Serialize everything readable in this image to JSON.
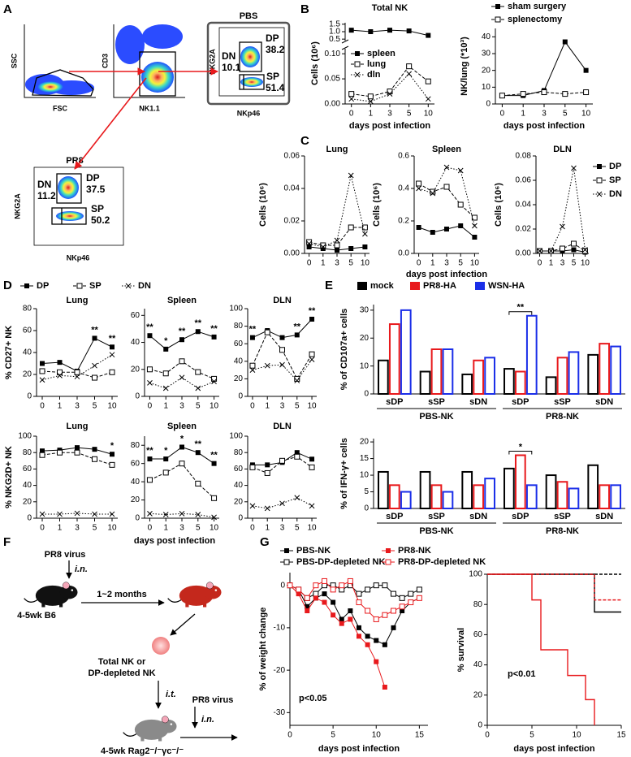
{
  "panels": [
    "A",
    "B",
    "C",
    "D",
    "E",
    "F",
    "G"
  ],
  "flow": {
    "plots": [
      {
        "x_label": "FSC",
        "y_label": "SSC"
      },
      {
        "x_label": "NK1.1",
        "y_label": "CD3"
      },
      {
        "title": "PBS",
        "x_label": "NKp46",
        "y_label": "NKG2A",
        "gates": [
          {
            "name": "DN",
            "value": 10.1
          },
          {
            "name": "DP",
            "value": 38.2
          },
          {
            "name": "SP",
            "value": 51.4
          }
        ]
      },
      {
        "title": "PR8",
        "x_label": "NKp46",
        "y_label": "NKG2A",
        "gates": [
          {
            "name": "DN",
            "value": 11.2
          },
          {
            "name": "DP",
            "value": 37.5
          },
          {
            "name": "SP",
            "value": 50.2
          }
        ]
      }
    ]
  },
  "diagram": {
    "virus1": "PR8 virus",
    "route1": "i.n.",
    "interval": "1~2 months",
    "donor": "4-5wk B6",
    "cells": [
      "Total NK or",
      "DP-depleted NK"
    ],
    "route2": "i.t.",
    "virus2": "PR8 virus",
    "route3": "i.n.",
    "recipient": "4-5wk Rag2⁻/⁻γc⁻/⁻"
  },
  "chart_data": [
    {
      "type": "line",
      "title": "Total NK",
      "y_label": "Cells (10⁶)",
      "x_label": "days post infection",
      "categories": [
        "0",
        "1",
        "3",
        "5",
        "10"
      ],
      "ylim": [
        0,
        0.11
      ],
      "yticks": [
        {
          "value": 0,
          "label": "0.00"
        },
        0.05,
        {
          "value": 0.1,
          "label": "0.10"
        }
      ],
      "y2lim": [
        0.4,
        1.6
      ],
      "y2ticks": [
        0.5,
        {
          "value": 1,
          "label": "1.0"
        },
        1.5
      ],
      "series": [
        {
          "name": "spleen",
          "color": "#000000",
          "marker": "square",
          "dash": "solid",
          "axis": "y2",
          "values": [
            1.1,
            1.0,
            1.1,
            1.05,
            0.75
          ]
        },
        {
          "name": "lung",
          "color": "#000000",
          "marker": "open",
          "dash": "dashed",
          "values": [
            0.02,
            0.015,
            0.025,
            0.075,
            0.045
          ]
        },
        {
          "name": "dln",
          "color": "#000000",
          "marker": "x",
          "dash": "dotted",
          "values": [
            0.01,
            0.005,
            0.02,
            0.06,
            0.01
          ]
        }
      ]
    },
    {
      "type": "line",
      "y_label": "NK/lung (*10³)",
      "x_label": "days post infection",
      "categories": [
        "0",
        "1",
        "3",
        "5",
        "10"
      ],
      "ylim": [
        0,
        45
      ],
      "yticks": [
        0,
        10,
        20,
        30,
        40
      ],
      "series": [
        {
          "name": "sham surgery",
          "color": "#000000",
          "marker": "square",
          "dash": "solid",
          "values": [
            5,
            5,
            8,
            37,
            20
          ]
        },
        {
          "name": "splenectomy",
          "color": "#000000",
          "marker": "open",
          "dash": "dashed",
          "values": [
            5,
            6,
            7,
            6,
            7
          ]
        }
      ]
    },
    {
      "type": "line",
      "title": "Lung",
      "y_label": "Cells (10⁶)",
      "categories": [
        "0",
        "1",
        "3",
        "5",
        "10"
      ],
      "ylim": [
        0,
        0.06
      ],
      "yticks": [
        {
          "value": 0,
          "label": "0.00"
        },
        0.02,
        0.04,
        0.06
      ],
      "series": [
        {
          "name": "DP",
          "color": "#000000",
          "marker": "square",
          "dash": "solid",
          "values": [
            0.004,
            0.003,
            0.002,
            0.003,
            0.004
          ]
        },
        {
          "name": "SP",
          "color": "#000000",
          "marker": "open",
          "dash": "dashed",
          "values": [
            0.007,
            0.005,
            0.005,
            0.016,
            0.016
          ]
        },
        {
          "name": "DN",
          "color": "#000000",
          "marker": "x",
          "dash": "dotted",
          "values": [
            0.006,
            0.004,
            0.008,
            0.048,
            0.012
          ]
        }
      ]
    },
    {
      "type": "line",
      "title": "Spleen",
      "y_label": "Cells (10⁶)",
      "x_label": "days post infection",
      "categories": [
        "0",
        "1",
        "3",
        "5",
        "10"
      ],
      "ylim": [
        0,
        0.6
      ],
      "yticks": [
        {
          "value": 0,
          "label": "0.0"
        },
        0.2,
        0.4,
        0.6
      ],
      "series": [
        {
          "color": "#000000",
          "marker": "square",
          "dash": "solid",
          "values": [
            0.16,
            0.13,
            0.15,
            0.17,
            0.1
          ]
        },
        {
          "color": "#000000",
          "marker": "open",
          "dash": "dashed",
          "values": [
            0.43,
            0.38,
            0.41,
            0.3,
            0.22
          ]
        },
        {
          "color": "#000000",
          "marker": "x",
          "dash": "dotted",
          "values": [
            0.4,
            0.37,
            0.53,
            0.51,
            0.17
          ]
        }
      ]
    },
    {
      "type": "line",
      "title": "DLN",
      "y_label": "Cells (10⁶)",
      "categories": [
        "0",
        "1",
        "3",
        "5",
        "10"
      ],
      "ylim": [
        0,
        0.08
      ],
      "yticks": [
        {
          "value": 0,
          "label": "0.00"
        },
        0.02,
        0.04,
        0.06,
        0.08
      ],
      "series": [
        {
          "color": "#000000",
          "marker": "square",
          "dash": "solid",
          "values": [
            0.002,
            0.002,
            0.002,
            0.003,
            0.001
          ]
        },
        {
          "color": "#000000",
          "marker": "open",
          "dash": "dashed",
          "values": [
            0.002,
            0.002,
            0.004,
            0.008,
            0.002
          ]
        },
        {
          "color": "#000000",
          "marker": "x",
          "dash": "dotted",
          "values": [
            0.002,
            0.002,
            0.022,
            0.07,
            0.003
          ]
        }
      ]
    },
    {
      "type": "line",
      "title": "Lung",
      "y_label": "% CD27+ NK",
      "categories": [
        "0",
        "1",
        "3",
        "5",
        "10"
      ],
      "ylim": [
        0,
        80
      ],
      "yticks": [
        0,
        20,
        40,
        60,
        80
      ],
      "annotations": [
        null,
        null,
        null,
        "**",
        "**"
      ],
      "series": [
        {
          "name": "DP",
          "color": "#000000",
          "marker": "square",
          "dash": "solid",
          "values": [
            30,
            31,
            23,
            53,
            45
          ]
        },
        {
          "name": "SP",
          "color": "#000000",
          "marker": "open",
          "dash": "dashed",
          "values": [
            23,
            22,
            22,
            17,
            22
          ]
        },
        {
          "name": "DN",
          "color": "#000000",
          "marker": "x",
          "dash": "dotted",
          "values": [
            15,
            19,
            18,
            28,
            38
          ]
        }
      ]
    },
    {
      "type": "line",
      "title": "Spleen",
      "categories": [
        "0",
        "1",
        "3",
        "5",
        "10"
      ],
      "ylim": [
        0,
        65
      ],
      "yticks": [
        0,
        20,
        40,
        60
      ],
      "annotations": [
        "**",
        "*",
        "**",
        "**",
        "**"
      ],
      "series": [
        {
          "color": "#000000",
          "marker": "square",
          "dash": "solid",
          "values": [
            45,
            35,
            42,
            48,
            44
          ]
        },
        {
          "color": "#000000",
          "marker": "open",
          "dash": "dashed",
          "values": [
            20,
            17,
            26,
            18,
            13
          ]
        },
        {
          "color": "#000000",
          "marker": "x",
          "dash": "dotted",
          "values": [
            10,
            6,
            14,
            6,
            11
          ]
        }
      ]
    },
    {
      "type": "line",
      "title": "DLN",
      "categories": [
        "0",
        "1",
        "3",
        "5",
        "10"
      ],
      "ylim": [
        0,
        100
      ],
      "yticks": [
        0,
        20,
        40,
        60,
        80,
        100
      ],
      "annotations": [
        "**",
        null,
        null,
        "**",
        "**"
      ],
      "series": [
        {
          "color": "#000000",
          "marker": "square",
          "dash": "solid",
          "values": [
            67,
            75,
            67,
            70,
            88
          ]
        },
        {
          "color": "#000000",
          "marker": "open",
          "dash": "dashed",
          "values": [
            35,
            73,
            53,
            20,
            48
          ]
        },
        {
          "color": "#000000",
          "marker": "x",
          "dash": "dotted",
          "values": [
            30,
            35,
            36,
            18,
            42
          ]
        }
      ]
    },
    {
      "type": "line",
      "title": "Lung",
      "y_label": "% NKG2D+ NK",
      "categories": [
        "0",
        "1",
        "3",
        "5",
        "10"
      ],
      "ylim": [
        0,
        100
      ],
      "yticks": [
        0,
        20,
        40,
        60,
        80,
        100
      ],
      "annotations": [
        null,
        null,
        null,
        null,
        "*"
      ],
      "series": [
        {
          "color": "#000000",
          "marker": "square",
          "dash": "solid",
          "values": [
            82,
            83,
            86,
            84,
            78
          ]
        },
        {
          "color": "#000000",
          "marker": "open",
          "dash": "dashed",
          "values": [
            77,
            80,
            80,
            72,
            65
          ]
        },
        {
          "color": "#000000",
          "marker": "x",
          "dash": "dotted",
          "values": [
            5,
            5,
            6,
            5,
            5
          ]
        }
      ]
    },
    {
      "type": "line",
      "title": "Spleen",
      "x_label": "days post infection",
      "categories": [
        "0",
        "1",
        "3",
        "5",
        "10"
      ],
      "ylim": [
        0,
        90
      ],
      "yticks": [
        0,
        20,
        40,
        60,
        80
      ],
      "annotations": [
        "**",
        "*",
        "*",
        "**",
        "**"
      ],
      "series": [
        {
          "color": "#000000",
          "marker": "square",
          "dash": "solid",
          "values": [
            65,
            65,
            78,
            72,
            60
          ]
        },
        {
          "color": "#000000",
          "marker": "open",
          "dash": "dashed",
          "values": [
            42,
            50,
            60,
            38,
            22
          ]
        },
        {
          "color": "#000000",
          "marker": "x",
          "dash": "dotted",
          "values": [
            5,
            4,
            5,
            4,
            1
          ]
        }
      ]
    },
    {
      "type": "line",
      "title": "DLN",
      "categories": [
        "0",
        "1",
        "3",
        "5",
        "10"
      ],
      "ylim": [
        0,
        100
      ],
      "yticks": [
        0,
        20,
        40,
        60,
        80,
        100
      ],
      "series": [
        {
          "color": "#000000",
          "marker": "square",
          "dash": "solid",
          "values": [
            65,
            65,
            68,
            80,
            72
          ]
        },
        {
          "color": "#000000",
          "marker": "open",
          "dash": "dashed",
          "values": [
            62,
            55,
            70,
            75,
            62
          ]
        },
        {
          "color": "#000000",
          "marker": "x",
          "dash": "dotted",
          "values": [
            15,
            12,
            18,
            25,
            15
          ]
        }
      ]
    },
    {
      "type": "bar",
      "y_label": "% of CD107a+ cells",
      "categories": [
        "sDP",
        "sSP",
        "sDN",
        "sDP",
        "sSP",
        "sDN"
      ],
      "groups": [
        "PBS-NK",
        "PR8-NK"
      ],
      "ylim": [
        0,
        32
      ],
      "yticks": [
        0,
        10,
        20,
        30
      ],
      "annotations": [
        null,
        null,
        null,
        "**",
        null,
        null
      ],
      "series": [
        {
          "name": "mock",
          "color": "#000000",
          "values": [
            12,
            8,
            7,
            9,
            6,
            14
          ]
        },
        {
          "name": "PR8-HA",
          "color": "#e8191c",
          "values": [
            25,
            16,
            12,
            8,
            13,
            18
          ]
        },
        {
          "name": "WSN-HA",
          "color": "#1a2ee8",
          "values": [
            30,
            16,
            13,
            28,
            15,
            17
          ]
        }
      ]
    },
    {
      "type": "bar",
      "y_label": "% of IFN-γ+ cells",
      "categories": [
        "sDP",
        "sSP",
        "sDN",
        "sDP",
        "sSP",
        "sDN"
      ],
      "groups": [
        "PBS-NK",
        "PR8-NK"
      ],
      "ylim": [
        0,
        21
      ],
      "yticks": [
        0,
        5,
        10,
        15,
        20
      ],
      "annotations": [
        null,
        null,
        null,
        "*",
        null,
        null
      ],
      "series": [
        {
          "color": "#000000",
          "values": [
            11,
            11,
            11,
            12,
            10,
            13
          ]
        },
        {
          "color": "#e8191c",
          "values": [
            7,
            7,
            7,
            16,
            8,
            7
          ]
        },
        {
          "color": "#1a2ee8",
          "values": [
            5,
            5,
            9,
            7,
            6,
            7
          ]
        }
      ]
    },
    {
      "type": "line",
      "y_label": "% of weight change",
      "x_label": "days post infection",
      "annotation": "p<0.05",
      "x": [
        0,
        1,
        2,
        3,
        4,
        5,
        6,
        7,
        8,
        9,
        10,
        11,
        12,
        13,
        14,
        15
      ],
      "xlim": [
        0,
        16
      ],
      "xticks": [
        0,
        5,
        10,
        15
      ],
      "ylim": [
        -33,
        3
      ],
      "yticks": [
        -30,
        -20,
        -10,
        0
      ],
      "series": [
        {
          "name": "PBS-NK",
          "color": "#000000",
          "marker": "square",
          "dash": "solid",
          "values": [
            0,
            -1,
            -5,
            -3,
            -2,
            -4,
            -8,
            -6,
            -10,
            -12,
            -13,
            -14,
            -10,
            -6,
            -4,
            -3
          ]
        },
        {
          "name": "PBS-DP-depleted NK",
          "color": "#000000",
          "marker": "open",
          "dash": "solid",
          "values": [
            0,
            -1,
            -3,
            -2,
            0,
            0,
            -1,
            0,
            -2,
            -1,
            0,
            0,
            -2,
            -3,
            -2,
            -1
          ]
        },
        {
          "name": "PR8-NK",
          "color": "#e8191c",
          "marker": "square",
          "dash": "solid",
          "values": [
            0,
            -2,
            -6,
            -3,
            -4,
            -7,
            -9,
            -8,
            -12,
            -14,
            -18,
            -24,
            null,
            null,
            null,
            null
          ]
        },
        {
          "name": "PR8-DP-depleted NK",
          "color": "#e8191c",
          "marker": "open",
          "dash": "solid",
          "values": [
            0,
            -1,
            -3,
            0,
            1,
            -1,
            0,
            1,
            -4,
            -6,
            -8,
            -7,
            -6,
            -5,
            -4,
            -3
          ]
        }
      ]
    },
    {
      "type": "step",
      "y_label": "% survival",
      "x_label": "days post infection",
      "annotation": "p<0.01",
      "xlim": [
        0,
        15
      ],
      "xticks": [
        0,
        5,
        10,
        15
      ],
      "ylim": [
        0,
        100
      ],
      "yticks": [
        0,
        20,
        40,
        60,
        80,
        100
      ],
      "series": [
        {
          "color": "#000000",
          "marker": "none",
          "dash": "solid",
          "x": [
            0,
            12,
            15
          ],
          "values": [
            100,
            75,
            75
          ]
        },
        {
          "color": "#000000",
          "marker": "none",
          "dash": "dashed",
          "x": [
            0,
            15
          ],
          "values": [
            100,
            100
          ]
        },
        {
          "color": "#e8191c",
          "marker": "none",
          "dash": "solid",
          "x": [
            0,
            5,
            6,
            9,
            11,
            12
          ],
          "values": [
            100,
            83,
            50,
            33,
            17,
            0
          ]
        },
        {
          "color": "#e8191c",
          "marker": "none",
          "dash": "dashed",
          "x": [
            0,
            12,
            15
          ],
          "values": [
            100,
            83,
            83
          ]
        }
      ]
    }
  ]
}
